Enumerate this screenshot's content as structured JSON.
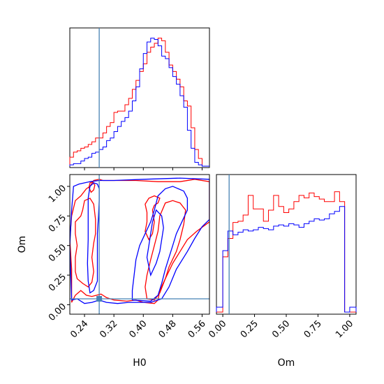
{
  "chart_data": {
    "type": "corner",
    "parameters": [
      "H0",
      "Om"
    ],
    "truth": {
      "H0": 0.28,
      "Om": 0.05
    },
    "colors": {
      "series_a": "#ff0000",
      "series_b": "#0000ff",
      "truth": "#4682b4"
    },
    "panels": {
      "h0_hist": {
        "type": "step-histogram",
        "x_range": [
          0.2,
          0.58
        ],
        "x_ticks": [
          0.24,
          0.32,
          0.4,
          0.48,
          0.56
        ],
        "bin_edges": [
          0.2,
          0.21,
          0.22,
          0.23,
          0.24,
          0.25,
          0.26,
          0.27,
          0.28,
          0.29,
          0.3,
          0.31,
          0.32,
          0.33,
          0.34,
          0.35,
          0.36,
          0.37,
          0.38,
          0.39,
          0.4,
          0.41,
          0.42,
          0.43,
          0.44,
          0.45,
          0.46,
          0.47,
          0.48,
          0.49,
          0.5,
          0.51,
          0.52,
          0.53,
          0.54,
          0.55,
          0.56,
          0.57,
          0.58
        ],
        "series": [
          {
            "color": "red",
            "counts": [
              0.07,
              0.11,
              0.12,
              0.14,
              0.15,
              0.17,
              0.19,
              0.22,
              0.22,
              0.26,
              0.31,
              0.34,
              0.42,
              0.43,
              0.43,
              0.48,
              0.53,
              0.6,
              0.67,
              0.74,
              0.8,
              0.89,
              0.93,
              0.96,
              1.0,
              0.98,
              0.89,
              0.79,
              0.74,
              0.68,
              0.62,
              0.51,
              0.47,
              0.3,
              0.13,
              0.06,
              0.0,
              0.0
            ]
          },
          {
            "color": "blue",
            "counts": [
              0.01,
              0.02,
              0.02,
              0.04,
              0.06,
              0.07,
              0.1,
              0.11,
              0.13,
              0.15,
              0.2,
              0.22,
              0.27,
              0.31,
              0.35,
              0.38,
              0.43,
              0.51,
              0.62,
              0.76,
              0.88,
              0.97,
              1.0,
              0.99,
              0.94,
              0.86,
              0.84,
              0.77,
              0.7,
              0.64,
              0.55,
              0.46,
              0.28,
              0.14,
              0.03,
              0.01,
              0.0,
              0.0
            ]
          }
        ]
      },
      "om_hist": {
        "type": "step-histogram",
        "x_range": [
          -0.05,
          1.05
        ],
        "x_ticks": [
          0.0,
          0.25,
          0.5,
          0.75,
          1.0
        ],
        "bin_edges": [
          -0.05,
          0.0,
          0.04,
          0.08,
          0.12,
          0.16,
          0.2,
          0.24,
          0.28,
          0.32,
          0.36,
          0.4,
          0.44,
          0.48,
          0.52,
          0.56,
          0.6,
          0.64,
          0.68,
          0.72,
          0.76,
          0.8,
          0.84,
          0.88,
          0.92,
          0.96,
          1.0,
          1.05
        ],
        "series": [
          {
            "color": "red",
            "counts": [
              0.0,
              0.45,
              0.6,
              0.73,
              0.74,
              0.79,
              0.95,
              0.84,
              0.84,
              0.74,
              0.83,
              0.95,
              0.86,
              0.81,
              0.84,
              0.9,
              0.95,
              0.93,
              0.97,
              0.94,
              0.92,
              0.9,
              0.9,
              0.98,
              0.9,
              0.0,
              0.0
            ]
          },
          {
            "color": "blue",
            "counts": [
              0.04,
              0.5,
              0.66,
              0.63,
              0.65,
              0.67,
              0.66,
              0.67,
              0.69,
              0.68,
              0.67,
              0.7,
              0.71,
              0.7,
              0.72,
              0.71,
              0.69,
              0.72,
              0.74,
              0.76,
              0.75,
              0.76,
              0.8,
              0.82,
              0.86,
              0.0,
              0.04
            ]
          }
        ]
      },
      "joint": {
        "type": "contour",
        "x_range": [
          0.2,
          0.58
        ],
        "y_range": [
          -0.08,
          1.1
        ],
        "x_ticks": [
          0.24,
          0.32,
          0.4,
          0.48,
          0.56
        ],
        "y_ticks": [
          0.0,
          0.25,
          0.5,
          0.75,
          1.0
        ],
        "contours": [
          {
            "color": "red",
            "points": [
              [
                0.205,
                0.02
              ],
              [
                0.215,
                0.08
              ],
              [
                0.23,
                0.12
              ],
              [
                0.245,
                0.08
              ],
              [
                0.26,
                0.07
              ],
              [
                0.285,
                0.09
              ],
              [
                0.3,
                0.06
              ],
              [
                0.32,
                0.04
              ],
              [
                0.355,
                0.03
              ],
              [
                0.38,
                0.04
              ],
              [
                0.4,
                0.02
              ],
              [
                0.43,
                0.01
              ],
              [
                0.44,
                0.04
              ],
              [
                0.445,
                0.12
              ],
              [
                0.46,
                0.22
              ],
              [
                0.48,
                0.35
              ],
              [
                0.5,
                0.45
              ],
              [
                0.52,
                0.55
              ],
              [
                0.545,
                0.62
              ],
              [
                0.58,
                0.7
              ],
              [
                0.58,
                1.04
              ],
              [
                0.54,
                1.06
              ],
              [
                0.5,
                1.04
              ],
              [
                0.44,
                1.04
              ],
              [
                0.38,
                1.05
              ],
              [
                0.32,
                1.05
              ],
              [
                0.29,
                1.05
              ],
              [
                0.28,
                1.06
              ],
              [
                0.265,
                1.05
              ],
              [
                0.255,
                1.0
              ],
              [
                0.245,
                0.98
              ],
              [
                0.23,
                0.92
              ],
              [
                0.215,
                0.88
              ],
              [
                0.205,
                0.75
              ],
              [
                0.2,
                0.55
              ],
              [
                0.205,
                0.3
              ],
              [
                0.205,
                0.02
              ]
            ]
          },
          {
            "color": "red",
            "points": [
              [
                0.215,
                0.28
              ],
              [
                0.22,
                0.22
              ],
              [
                0.235,
                0.18
              ],
              [
                0.25,
                0.15
              ],
              [
                0.26,
                0.19
              ],
              [
                0.265,
                0.28
              ],
              [
                0.26,
                0.4
              ],
              [
                0.265,
                0.52
              ],
              [
                0.27,
                0.6
              ],
              [
                0.27,
                0.72
              ],
              [
                0.265,
                0.85
              ],
              [
                0.255,
                0.9
              ],
              [
                0.24,
                0.88
              ],
              [
                0.235,
                0.8
              ],
              [
                0.23,
                0.75
              ],
              [
                0.215,
                0.7
              ],
              [
                0.215,
                0.6
              ],
              [
                0.22,
                0.5
              ],
              [
                0.215,
                0.4
              ],
              [
                0.215,
                0.28
              ]
            ]
          },
          {
            "color": "red",
            "points": [
              [
                0.41,
                0.05
              ],
              [
                0.43,
                0.04
              ],
              [
                0.445,
                0.1
              ],
              [
                0.46,
                0.22
              ],
              [
                0.47,
                0.32
              ],
              [
                0.49,
                0.45
              ],
              [
                0.5,
                0.55
              ],
              [
                0.51,
                0.68
              ],
              [
                0.515,
                0.8
              ],
              [
                0.5,
                0.86
              ],
              [
                0.48,
                0.88
              ],
              [
                0.46,
                0.86
              ],
              [
                0.445,
                0.75
              ],
              [
                0.44,
                0.62
              ],
              [
                0.43,
                0.5
              ],
              [
                0.42,
                0.38
              ],
              [
                0.41,
                0.25
              ],
              [
                0.405,
                0.15
              ],
              [
                0.41,
                0.05
              ]
            ]
          },
          {
            "color": "red",
            "points": [
              [
                0.415,
                0.55
              ],
              [
                0.425,
                0.6
              ],
              [
                0.43,
                0.7
              ],
              [
                0.425,
                0.8
              ],
              [
                0.43,
                0.84
              ],
              [
                0.44,
                0.86
              ],
              [
                0.445,
                0.9
              ],
              [
                0.43,
                0.92
              ],
              [
                0.415,
                0.9
              ],
              [
                0.405,
                0.85
              ],
              [
                0.41,
                0.78
              ],
              [
                0.41,
                0.7
              ],
              [
                0.405,
                0.62
              ],
              [
                0.415,
                0.55
              ]
            ]
          },
          {
            "color": "red",
            "points": [
              [
                0.258,
                0.95
              ],
              [
                0.265,
                0.97
              ],
              [
                0.268,
                1.01
              ],
              [
                0.262,
                1.04
              ],
              [
                0.255,
                1.03
              ],
              [
                0.252,
                0.99
              ],
              [
                0.258,
                0.95
              ]
            ]
          },
          {
            "color": "blue",
            "points": [
              [
                0.205,
                0.04
              ],
              [
                0.22,
                0.05
              ],
              [
                0.24,
                0.01
              ],
              [
                0.26,
                0.02
              ],
              [
                0.28,
                0.04
              ],
              [
                0.3,
                0.02
              ],
              [
                0.33,
                0.01
              ],
              [
                0.36,
                0.02
              ],
              [
                0.39,
                0.02
              ],
              [
                0.42,
                0.02
              ],
              [
                0.45,
                0.05
              ],
              [
                0.47,
                0.15
              ],
              [
                0.49,
                0.3
              ],
              [
                0.52,
                0.45
              ],
              [
                0.54,
                0.56
              ],
              [
                0.56,
                0.66
              ],
              [
                0.58,
                0.72
              ],
              [
                0.58,
                1.06
              ],
              [
                0.5,
                1.07
              ],
              [
                0.4,
                1.06
              ],
              [
                0.32,
                1.05
              ],
              [
                0.28,
                1.05
              ],
              [
                0.255,
                1.04
              ],
              [
                0.24,
                1.03
              ],
              [
                0.225,
                1.02
              ],
              [
                0.21,
                1.0
              ],
              [
                0.205,
                0.8
              ],
              [
                0.2,
                0.5
              ],
              [
                0.205,
                0.04
              ]
            ]
          },
          {
            "color": "blue",
            "points": [
              [
                0.255,
                0.1
              ],
              [
                0.265,
                0.12
              ],
              [
                0.275,
                0.2
              ],
              [
                0.275,
                0.3
              ],
              [
                0.275,
                0.45
              ],
              [
                0.275,
                0.6
              ],
              [
                0.278,
                0.75
              ],
              [
                0.28,
                0.88
              ],
              [
                0.28,
                0.98
              ],
              [
                0.275,
                1.02
              ],
              [
                0.265,
                1.03
              ],
              [
                0.255,
                1.0
              ],
              [
                0.25,
                0.9
              ],
              [
                0.25,
                0.75
              ],
              [
                0.25,
                0.55
              ],
              [
                0.248,
                0.35
              ],
              [
                0.25,
                0.2
              ],
              [
                0.255,
                0.1
              ]
            ]
          },
          {
            "color": "blue",
            "points": [
              [
                0.37,
                0.04
              ],
              [
                0.42,
                0.03
              ],
              [
                0.44,
                0.08
              ],
              [
                0.45,
                0.18
              ],
              [
                0.46,
                0.3
              ],
              [
                0.47,
                0.4
              ],
              [
                0.48,
                0.5
              ],
              [
                0.49,
                0.6
              ],
              [
                0.505,
                0.7
              ],
              [
                0.52,
                0.8
              ],
              [
                0.52,
                0.9
              ],
              [
                0.51,
                0.96
              ],
              [
                0.48,
                1.0
              ],
              [
                0.46,
                0.98
              ],
              [
                0.44,
                0.92
              ],
              [
                0.43,
                0.8
              ],
              [
                0.42,
                0.7
              ],
              [
                0.405,
                0.6
              ],
              [
                0.39,
                0.5
              ],
              [
                0.38,
                0.38
              ],
              [
                0.375,
                0.25
              ],
              [
                0.37,
                0.12
              ],
              [
                0.37,
                0.04
              ]
            ]
          },
          {
            "color": "blue",
            "points": [
              [
                0.42,
                0.25
              ],
              [
                0.435,
                0.35
              ],
              [
                0.445,
                0.45
              ],
              [
                0.45,
                0.55
              ],
              [
                0.455,
                0.65
              ],
              [
                0.45,
                0.75
              ],
              [
                0.435,
                0.8
              ],
              [
                0.425,
                0.7
              ],
              [
                0.42,
                0.6
              ],
              [
                0.415,
                0.5
              ],
              [
                0.41,
                0.4
              ],
              [
                0.42,
                0.25
              ]
            ]
          }
        ]
      }
    }
  }
}
